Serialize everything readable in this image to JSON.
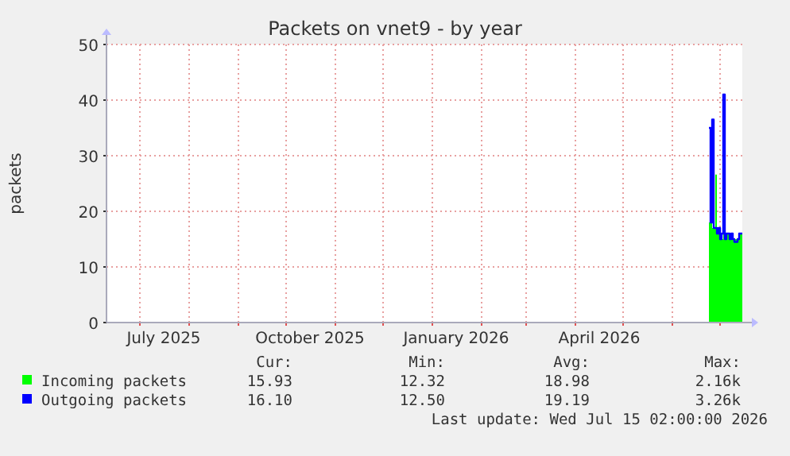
{
  "chart_data": {
    "type": "area",
    "title": "Packets on vnet9 - by year",
    "ylabel": "packets",
    "xlim": [
      "2025-06-10",
      "2026-07-15"
    ],
    "xticks": [
      {
        "value": "2025-07-01",
        "label": null
      },
      {
        "value": "2025-07-16",
        "label": "July 2025"
      },
      {
        "value": "2025-08-01",
        "label": null
      },
      {
        "value": "2025-09-01",
        "label": null
      },
      {
        "value": "2025-10-01",
        "label": null
      },
      {
        "value": "2025-10-16",
        "label": "October 2025"
      },
      {
        "value": "2025-11-01",
        "label": null
      },
      {
        "value": "2025-12-01",
        "label": null
      },
      {
        "value": "2026-01-01",
        "label": null
      },
      {
        "value": "2026-01-16",
        "label": "January 2026"
      },
      {
        "value": "2026-02-01",
        "label": null
      },
      {
        "value": "2026-03-01",
        "label": null
      },
      {
        "value": "2026-04-01",
        "label": null
      },
      {
        "value": "2026-04-16",
        "label": "April 2026"
      },
      {
        "value": "2026-05-01",
        "label": null
      },
      {
        "value": "2026-06-01",
        "label": null
      },
      {
        "value": "2026-07-01",
        "label": null
      }
    ],
    "ylim": [
      0,
      50
    ],
    "yticks": [
      0,
      10,
      20,
      30,
      40,
      50
    ],
    "grid": true,
    "legend": "bottom",
    "x": [
      "2026-06-24",
      "2026-06-25",
      "2026-06-26",
      "2026-06-27",
      "2026-06-28",
      "2026-06-29",
      "2026-06-30",
      "2026-07-01",
      "2026-07-02",
      "2026-07-03",
      "2026-07-04",
      "2026-07-05",
      "2026-07-06",
      "2026-07-07",
      "2026-07-08",
      "2026-07-09",
      "2026-07-10",
      "2026-07-11",
      "2026-07-12",
      "2026-07-13",
      "2026-07-14",
      "2026-07-15"
    ],
    "series": [
      {
        "name": "Incoming packets",
        "color": "#00ff00",
        "values": [
          18,
          18,
          17,
          17,
          26.6,
          17,
          16,
          16,
          15,
          16,
          15,
          16,
          16,
          15,
          16,
          15,
          15,
          15,
          15,
          16,
          16,
          16
        ]
      },
      {
        "name": "Outgoing packets",
        "color": "#0000ff",
        "type": "line",
        "values": [
          35,
          18,
          36.5,
          17,
          17,
          16,
          17,
          15,
          16,
          41,
          15,
          16,
          16,
          15,
          16,
          15,
          14.5,
          14.5,
          15,
          16,
          16,
          16
        ]
      }
    ],
    "annotations": [
      "Cur:",
      "Min:",
      "Avg:",
      "Max:",
      "15.93",
      "12.32",
      "18.98",
      "2.16k",
      "16.10",
      "12.50",
      "19.19",
      "3.26k",
      "Last update: Wed Jul 15 02:00:00 2026"
    ]
  }
}
